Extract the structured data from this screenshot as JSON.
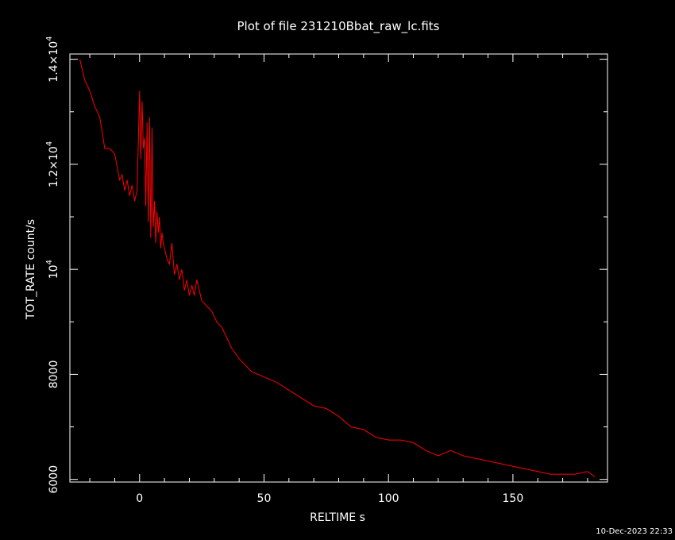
{
  "chart_data": {
    "type": "line",
    "title": "Plot of file 231210Bbat_raw_lc.fits",
    "xlabel": "RELTIME  s",
    "ylabel": "TOT_RATE  count/s",
    "xlim": [
      -28,
      188
    ],
    "ylim": [
      5950,
      14100
    ],
    "grid": false,
    "legend": "none",
    "x_ticks": [
      {
        "value": 0,
        "label": "0"
      },
      {
        "value": 50,
        "label": "50"
      },
      {
        "value": 100,
        "label": "100"
      },
      {
        "value": 150,
        "label": "150"
      }
    ],
    "y_ticks": [
      {
        "value": 6000,
        "label": "6000"
      },
      {
        "value": 8000,
        "label": "8000"
      },
      {
        "value": 10000,
        "label": "10",
        "exp": "4"
      },
      {
        "value": 12000,
        "label": "1.2×10",
        "exp": "4"
      },
      {
        "value": 14000,
        "label": "1.4×10",
        "exp": "4"
      }
    ],
    "series_color": "#ff0000",
    "x": [
      -24,
      -22,
      -20,
      -18,
      -16,
      -14,
      -12,
      -10,
      -8,
      -7,
      -6,
      -5,
      -4,
      -3,
      -2,
      -1,
      0,
      0.5,
      1,
      1.5,
      2,
      2.5,
      3,
      3.5,
      4,
      4.5,
      5,
      5.5,
      6,
      6.5,
      7,
      7.5,
      8,
      8.5,
      9,
      9.5,
      10,
      11,
      12,
      13,
      14,
      15,
      16,
      17,
      18,
      19,
      20,
      21,
      22,
      23,
      25,
      27,
      29,
      31,
      33,
      35,
      37,
      40,
      45,
      50,
      55,
      60,
      65,
      70,
      75,
      80,
      85,
      90,
      95,
      100,
      105,
      110,
      115,
      120,
      125,
      130,
      135,
      140,
      145,
      150,
      155,
      160,
      165,
      170,
      175,
      180,
      183
    ],
    "y": [
      14000,
      13600,
      13400,
      13100,
      12900,
      12300,
      12300,
      12200,
      11700,
      11800,
      11500,
      11700,
      11400,
      11600,
      11300,
      11500,
      13400,
      12100,
      13200,
      12300,
      12500,
      11200,
      12800,
      10900,
      12900,
      10600,
      12700,
      10800,
      11300,
      10500,
      11100,
      10700,
      11000,
      10400,
      10700,
      10500,
      10400,
      10200,
      10100,
      10500,
      9900,
      10100,
      9800,
      10000,
      9600,
      9800,
      9500,
      9700,
      9500,
      9800,
      9400,
      9300,
      9200,
      9000,
      8900,
      8700,
      8500,
      8300,
      8050,
      7950,
      7850,
      7700,
      7550,
      7400,
      7350,
      7200,
      7000,
      6950,
      6800,
      6750,
      6750,
      6700,
      6550,
      6450,
      6550,
      6450,
      6400,
      6350,
      6300,
      6250,
      6200,
      6150,
      6100,
      6100,
      6100,
      6150,
      6050
    ]
  },
  "footer": {
    "timestamp": "10-Dec-2023 22:33"
  }
}
